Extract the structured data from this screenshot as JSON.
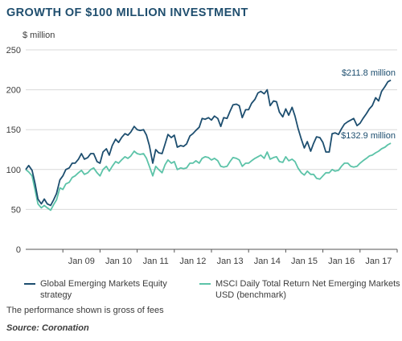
{
  "colors": {
    "strategy": "#1d4e6f",
    "benchmark": "#5cc3a8",
    "grid": "#d9d9d9",
    "axis": "#555555"
  },
  "notes": {
    "performance": "The performance shown is gross of fees",
    "source": "Source: Coronation"
  },
  "chart_data": {
    "type": "line",
    "title": "GROWTH OF $100 MILLION INVESTMENT",
    "ylabel": "$ million",
    "ylim": [
      0,
      250
    ],
    "yticks": [
      0,
      50,
      100,
      150,
      200,
      250
    ],
    "xlim": [
      2008.0,
      2018.0
    ],
    "xticks": [
      {
        "label": "Jan 09",
        "x": 2009.0
      },
      {
        "label": "Jan 10",
        "x": 2010.0
      },
      {
        "label": "Jan 11",
        "x": 2011.0
      },
      {
        "label": "Jan 12",
        "x": 2012.0
      },
      {
        "label": "Jan 13",
        "x": 2013.0
      },
      {
        "label": "Jan 14",
        "x": 2014.0
      },
      {
        "label": "Jan 15",
        "x": 2015.0
      },
      {
        "label": "Jan 16",
        "x": 2016.0
      },
      {
        "label": "Jan 17",
        "x": 2017.0
      }
    ],
    "grid": true,
    "legend": "bottom",
    "series": [
      {
        "name": "Global Emerging Markets Equity strategy",
        "end_label": "$211.8 million",
        "points": [
          [
            2008.0,
            100
          ],
          [
            2008.08,
            105
          ],
          [
            2008.17,
            99
          ],
          [
            2008.25,
            83
          ],
          [
            2008.33,
            63
          ],
          [
            2008.42,
            57
          ],
          [
            2008.5,
            63
          ],
          [
            2008.58,
            57
          ],
          [
            2008.67,
            55
          ],
          [
            2008.75,
            62
          ],
          [
            2008.83,
            70
          ],
          [
            2008.92,
            87
          ],
          [
            2009.0,
            92
          ],
          [
            2009.08,
            100
          ],
          [
            2009.17,
            102
          ],
          [
            2009.25,
            108
          ],
          [
            2009.33,
            108
          ],
          [
            2009.42,
            113
          ],
          [
            2009.5,
            120
          ],
          [
            2009.58,
            113
          ],
          [
            2009.67,
            115
          ],
          [
            2009.75,
            120
          ],
          [
            2009.83,
            120
          ],
          [
            2009.92,
            110
          ],
          [
            2010.0,
            108
          ],
          [
            2010.08,
            122
          ],
          [
            2010.17,
            126
          ],
          [
            2010.25,
            118
          ],
          [
            2010.33,
            130
          ],
          [
            2010.42,
            138
          ],
          [
            2010.5,
            134
          ],
          [
            2010.58,
            140
          ],
          [
            2010.67,
            145
          ],
          [
            2010.75,
            143
          ],
          [
            2010.83,
            147
          ],
          [
            2010.92,
            154
          ],
          [
            2011.0,
            150
          ],
          [
            2011.08,
            149
          ],
          [
            2011.17,
            150
          ],
          [
            2011.25,
            143
          ],
          [
            2011.33,
            130
          ],
          [
            2011.42,
            108
          ],
          [
            2011.5,
            125
          ],
          [
            2011.58,
            121
          ],
          [
            2011.67,
            120
          ],
          [
            2011.75,
            132
          ],
          [
            2011.83,
            144
          ],
          [
            2011.92,
            140
          ],
          [
            2012.0,
            143
          ],
          [
            2012.08,
            128
          ],
          [
            2012.17,
            130
          ],
          [
            2012.25,
            129
          ],
          [
            2012.33,
            132
          ],
          [
            2012.42,
            142
          ],
          [
            2012.5,
            145
          ],
          [
            2012.58,
            149
          ],
          [
            2012.67,
            153
          ],
          [
            2012.75,
            164
          ],
          [
            2012.83,
            163
          ],
          [
            2012.92,
            165
          ],
          [
            2013.0,
            162
          ],
          [
            2013.08,
            167
          ],
          [
            2013.17,
            164
          ],
          [
            2013.25,
            154
          ],
          [
            2013.33,
            165
          ],
          [
            2013.42,
            164
          ],
          [
            2013.5,
            173
          ],
          [
            2013.58,
            181
          ],
          [
            2013.67,
            182
          ],
          [
            2013.75,
            180
          ],
          [
            2013.83,
            165
          ],
          [
            2013.92,
            175
          ],
          [
            2014.0,
            175
          ],
          [
            2014.08,
            183
          ],
          [
            2014.17,
            188
          ],
          [
            2014.25,
            196
          ],
          [
            2014.33,
            198
          ],
          [
            2014.42,
            195
          ],
          [
            2014.5,
            200
          ],
          [
            2014.58,
            180
          ],
          [
            2014.67,
            186
          ],
          [
            2014.75,
            185
          ],
          [
            2014.83,
            172
          ],
          [
            2014.92,
            166
          ],
          [
            2015.0,
            176
          ],
          [
            2015.08,
            168
          ],
          [
            2015.17,
            178
          ],
          [
            2015.25,
            167
          ],
          [
            2015.33,
            152
          ],
          [
            2015.42,
            138
          ],
          [
            2015.5,
            127
          ],
          [
            2015.58,
            135
          ],
          [
            2015.67,
            123
          ],
          [
            2015.75,
            133
          ],
          [
            2015.83,
            141
          ],
          [
            2015.92,
            140
          ],
          [
            2016.0,
            134
          ],
          [
            2016.08,
            122
          ],
          [
            2016.17,
            122
          ],
          [
            2016.25,
            145
          ],
          [
            2016.33,
            146
          ],
          [
            2016.42,
            144
          ],
          [
            2016.5,
            151
          ],
          [
            2016.58,
            157
          ],
          [
            2016.67,
            160
          ],
          [
            2016.75,
            162
          ],
          [
            2016.83,
            164
          ],
          [
            2016.92,
            155
          ],
          [
            2017.0,
            158
          ],
          [
            2017.08,
            164
          ],
          [
            2017.17,
            170
          ],
          [
            2017.25,
            176
          ],
          [
            2017.33,
            180
          ],
          [
            2017.42,
            190
          ],
          [
            2017.5,
            186
          ],
          [
            2017.58,
            198
          ],
          [
            2017.67,
            204
          ],
          [
            2017.75,
            210
          ],
          [
            2017.83,
            212
          ]
        ]
      },
      {
        "name": "MSCI Daily Total Return Net Emerging Markets USD (benchmark)",
        "end_label": "$132.9 million",
        "points": [
          [
            2008.0,
            100
          ],
          [
            2008.08,
            97
          ],
          [
            2008.17,
            92
          ],
          [
            2008.25,
            75
          ],
          [
            2008.33,
            57
          ],
          [
            2008.42,
            52
          ],
          [
            2008.5,
            55
          ],
          [
            2008.58,
            52
          ],
          [
            2008.67,
            49
          ],
          [
            2008.75,
            56
          ],
          [
            2008.83,
            62
          ],
          [
            2008.92,
            77
          ],
          [
            2009.0,
            75
          ],
          [
            2009.08,
            82
          ],
          [
            2009.17,
            84
          ],
          [
            2009.25,
            90
          ],
          [
            2009.33,
            92
          ],
          [
            2009.42,
            96
          ],
          [
            2009.5,
            99
          ],
          [
            2009.58,
            94
          ],
          [
            2009.67,
            96
          ],
          [
            2009.75,
            100
          ],
          [
            2009.83,
            102
          ],
          [
            2009.92,
            96
          ],
          [
            2010.0,
            92
          ],
          [
            2010.08,
            100
          ],
          [
            2010.17,
            104
          ],
          [
            2010.25,
            98
          ],
          [
            2010.33,
            104
          ],
          [
            2010.42,
            110
          ],
          [
            2010.5,
            108
          ],
          [
            2010.58,
            112
          ],
          [
            2010.67,
            116
          ],
          [
            2010.75,
            114
          ],
          [
            2010.83,
            117
          ],
          [
            2010.92,
            123
          ],
          [
            2011.0,
            120
          ],
          [
            2011.08,
            119
          ],
          [
            2011.17,
            120
          ],
          [
            2011.25,
            114
          ],
          [
            2011.33,
            104
          ],
          [
            2011.42,
            92
          ],
          [
            2011.5,
            104
          ],
          [
            2011.58,
            100
          ],
          [
            2011.67,
            96
          ],
          [
            2011.75,
            106
          ],
          [
            2011.83,
            112
          ],
          [
            2011.92,
            108
          ],
          [
            2012.0,
            110
          ],
          [
            2012.08,
            100
          ],
          [
            2012.17,
            102
          ],
          [
            2012.25,
            101
          ],
          [
            2012.33,
            102
          ],
          [
            2012.42,
            108
          ],
          [
            2012.5,
            108
          ],
          [
            2012.58,
            111
          ],
          [
            2012.67,
            108
          ],
          [
            2012.75,
            114
          ],
          [
            2012.83,
            116
          ],
          [
            2012.92,
            115
          ],
          [
            2013.0,
            112
          ],
          [
            2013.08,
            114
          ],
          [
            2013.17,
            111
          ],
          [
            2013.25,
            104
          ],
          [
            2013.33,
            103
          ],
          [
            2013.42,
            104
          ],
          [
            2013.5,
            110
          ],
          [
            2013.58,
            115
          ],
          [
            2013.67,
            114
          ],
          [
            2013.75,
            112
          ],
          [
            2013.83,
            104
          ],
          [
            2013.92,
            108
          ],
          [
            2014.0,
            108
          ],
          [
            2014.08,
            111
          ],
          [
            2014.17,
            114
          ],
          [
            2014.25,
            116
          ],
          [
            2014.33,
            118
          ],
          [
            2014.42,
            114
          ],
          [
            2014.5,
            122
          ],
          [
            2014.58,
            113
          ],
          [
            2014.67,
            115
          ],
          [
            2014.75,
            116
          ],
          [
            2014.83,
            110
          ],
          [
            2014.92,
            109
          ],
          [
            2015.0,
            116
          ],
          [
            2015.08,
            111
          ],
          [
            2015.17,
            113
          ],
          [
            2015.25,
            110
          ],
          [
            2015.33,
            102
          ],
          [
            2015.42,
            96
          ],
          [
            2015.5,
            93
          ],
          [
            2015.58,
            98
          ],
          [
            2015.67,
            94
          ],
          [
            2015.75,
            94
          ],
          [
            2015.83,
            89
          ],
          [
            2015.92,
            88
          ],
          [
            2016.0,
            92
          ],
          [
            2016.08,
            96
          ],
          [
            2016.17,
            96
          ],
          [
            2016.25,
            100
          ],
          [
            2016.33,
            98
          ],
          [
            2016.42,
            99
          ],
          [
            2016.5,
            104
          ],
          [
            2016.58,
            108
          ],
          [
            2016.67,
            108
          ],
          [
            2016.75,
            104
          ],
          [
            2016.83,
            103
          ],
          [
            2016.92,
            104
          ],
          [
            2017.0,
            108
          ],
          [
            2017.08,
            111
          ],
          [
            2017.17,
            114
          ],
          [
            2017.25,
            117
          ],
          [
            2017.33,
            118
          ],
          [
            2017.42,
            121
          ],
          [
            2017.5,
            123
          ],
          [
            2017.58,
            126
          ],
          [
            2017.67,
            128
          ],
          [
            2017.75,
            131
          ],
          [
            2017.83,
            133
          ]
        ]
      }
    ]
  }
}
